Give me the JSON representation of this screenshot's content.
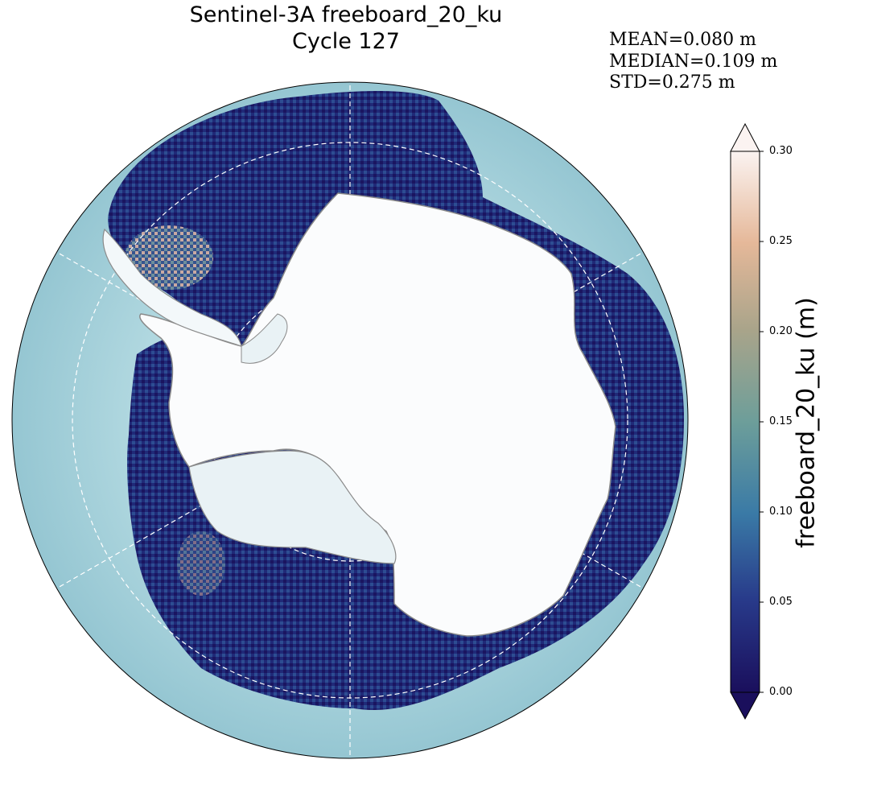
{
  "figure": {
    "title_line1": "Sentinel-3A freeboard_20_ku",
    "title_line2": "Cycle 127"
  },
  "stats": {
    "mean": "MEAN=0.080 m",
    "median": "MEDIAN=0.109 m",
    "std": "STD=0.275 m"
  },
  "colorbar": {
    "label": "freeboard_20_ku (m)",
    "ticks": [
      "0.00",
      "0.05",
      "0.10",
      "0.15",
      "0.20",
      "0.25",
      "0.30"
    ],
    "range": [
      0.0,
      0.3
    ],
    "extend": "both",
    "colormap_stops": [
      "#1a0f5c",
      "#283a8a",
      "#3a7aa6",
      "#6d9e9a",
      "#a9a48a",
      "#e5b899",
      "#fbf3f1"
    ]
  },
  "map": {
    "projection": "south-polar-stereographic",
    "ocean_color": "#9dcbd6",
    "land_ice_color": "#ffffff",
    "coastline_color": "#808080",
    "graticule": "dashed-white"
  }
}
